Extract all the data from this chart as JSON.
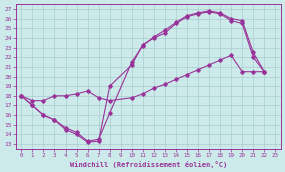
{
  "xlabel": "Windchill (Refroidissement éolien,°C)",
  "bg_color": "#cceaea",
  "line_color": "#993399",
  "xlim": [
    -0.5,
    23.5
  ],
  "ylim": [
    12.5,
    27.5
  ],
  "xticks": [
    0,
    1,
    2,
    3,
    4,
    5,
    6,
    7,
    8,
    9,
    10,
    11,
    12,
    13,
    14,
    15,
    16,
    17,
    18,
    19,
    20,
    21,
    22,
    23
  ],
  "yticks": [
    13,
    14,
    15,
    16,
    17,
    18,
    19,
    20,
    21,
    22,
    23,
    24,
    25,
    26,
    27
  ],
  "line1_x": [
    0,
    1,
    2,
    3,
    4,
    5,
    6,
    7,
    8,
    10,
    11,
    12,
    13,
    14,
    15,
    16,
    17,
    18,
    19,
    20,
    21,
    22
  ],
  "line1_y": [
    18,
    17,
    16,
    15.5,
    14.5,
    14,
    13.2,
    13.3,
    19,
    21.2,
    23.3,
    24.0,
    24.5,
    25.5,
    26.2,
    26.5,
    26.7,
    26.5,
    25.8,
    25.5,
    22.0,
    20.5
  ],
  "line2_x": [
    0,
    1,
    2,
    3,
    4,
    5,
    6,
    7,
    8,
    10,
    11,
    12,
    13,
    14,
    15,
    16,
    17,
    18,
    19,
    20,
    21,
    22
  ],
  "line2_y": [
    18,
    17,
    16,
    15.5,
    14.7,
    14.2,
    13.3,
    13.5,
    16.2,
    21.5,
    23.2,
    24.1,
    24.8,
    25.6,
    26.3,
    26.6,
    26.8,
    26.6,
    26.0,
    25.8,
    22.5,
    20.5
  ],
  "line3_x": [
    0,
    1,
    2,
    3,
    4,
    5,
    6,
    7,
    8,
    10,
    11,
    12,
    13,
    14,
    15,
    16,
    17,
    18,
    19,
    20,
    21,
    22
  ],
  "line3_y": [
    18,
    17.5,
    17.5,
    18.0,
    18.0,
    18.2,
    18.5,
    17.8,
    17.5,
    17.8,
    18.2,
    18.8,
    19.2,
    19.7,
    20.2,
    20.7,
    21.2,
    21.7,
    22.2,
    20.5,
    20.5,
    20.5
  ]
}
